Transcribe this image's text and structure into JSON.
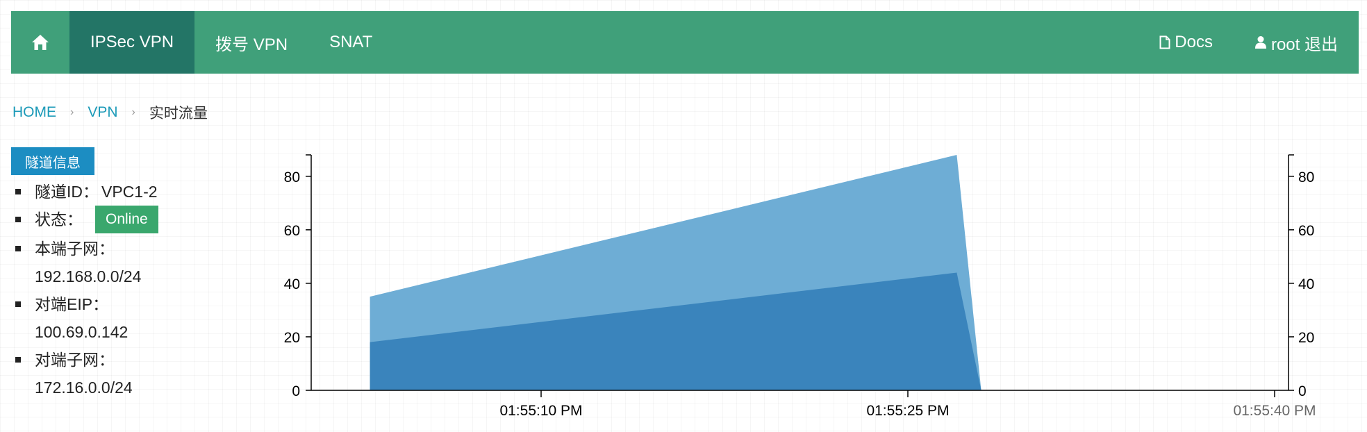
{
  "nav": {
    "home_icon": "home-icon",
    "items": [
      {
        "label": "IPSec VPN",
        "active": true
      },
      {
        "label": "拨号 VPN",
        "active": false
      },
      {
        "label": "SNAT",
        "active": false
      }
    ],
    "docs_label": "Docs",
    "docs_icon": "document-icon",
    "user_label": "root 退出",
    "user_icon": "user-icon"
  },
  "breadcrumb": {
    "items": [
      "HOME",
      "VPN"
    ],
    "separator": "›",
    "current": "实时流量"
  },
  "tunnel": {
    "panel_title": "隧道信息",
    "id_label": "隧道ID：",
    "id_value": "VPC1-2",
    "status_label": "状态：",
    "status_value": "Online",
    "local_subnet_label": "本端子网：",
    "local_subnet_value": "192.168.0.0/24",
    "remote_eip_label": "对端EIP：",
    "remote_eip_value": "100.69.0.142",
    "remote_subnet_label": "对端子网：",
    "remote_subnet_value": "172.16.0.0/24"
  },
  "chart_data": {
    "type": "area",
    "stacked": true,
    "x": [
      "01:55:03 PM",
      "01:55:27 PM",
      "01:55:28 PM"
    ],
    "series": [
      {
        "values": [
          18,
          44,
          0
        ],
        "color": "#3a84bc"
      },
      {
        "values": [
          17,
          44,
          0
        ],
        "color": "#6eadd5"
      }
    ],
    "x_ticks": [
      "01:55:10 PM",
      "01:55:25 PM",
      "01:55:40 PM"
    ],
    "ylim": [
      0,
      88
    ],
    "y_ticks": [
      0,
      20,
      40,
      60,
      80
    ],
    "grid": false,
    "left_axis": true,
    "right_axis": true
  }
}
